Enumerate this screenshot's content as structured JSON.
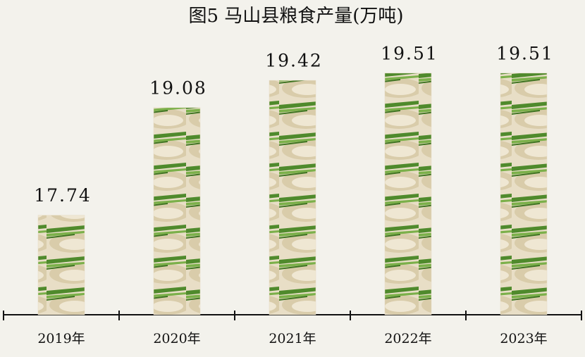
{
  "chart_data": {
    "type": "bar",
    "title": "图5   马山县粮食产量(万吨)",
    "categories": [
      "2019年",
      "2020年",
      "2021年",
      "2022年",
      "2023年"
    ],
    "values": [
      17.74,
      19.08,
      19.42,
      19.51,
      19.51
    ],
    "color": "#e6dcc4",
    "ylim": [
      16.5,
      20.0
    ]
  }
}
